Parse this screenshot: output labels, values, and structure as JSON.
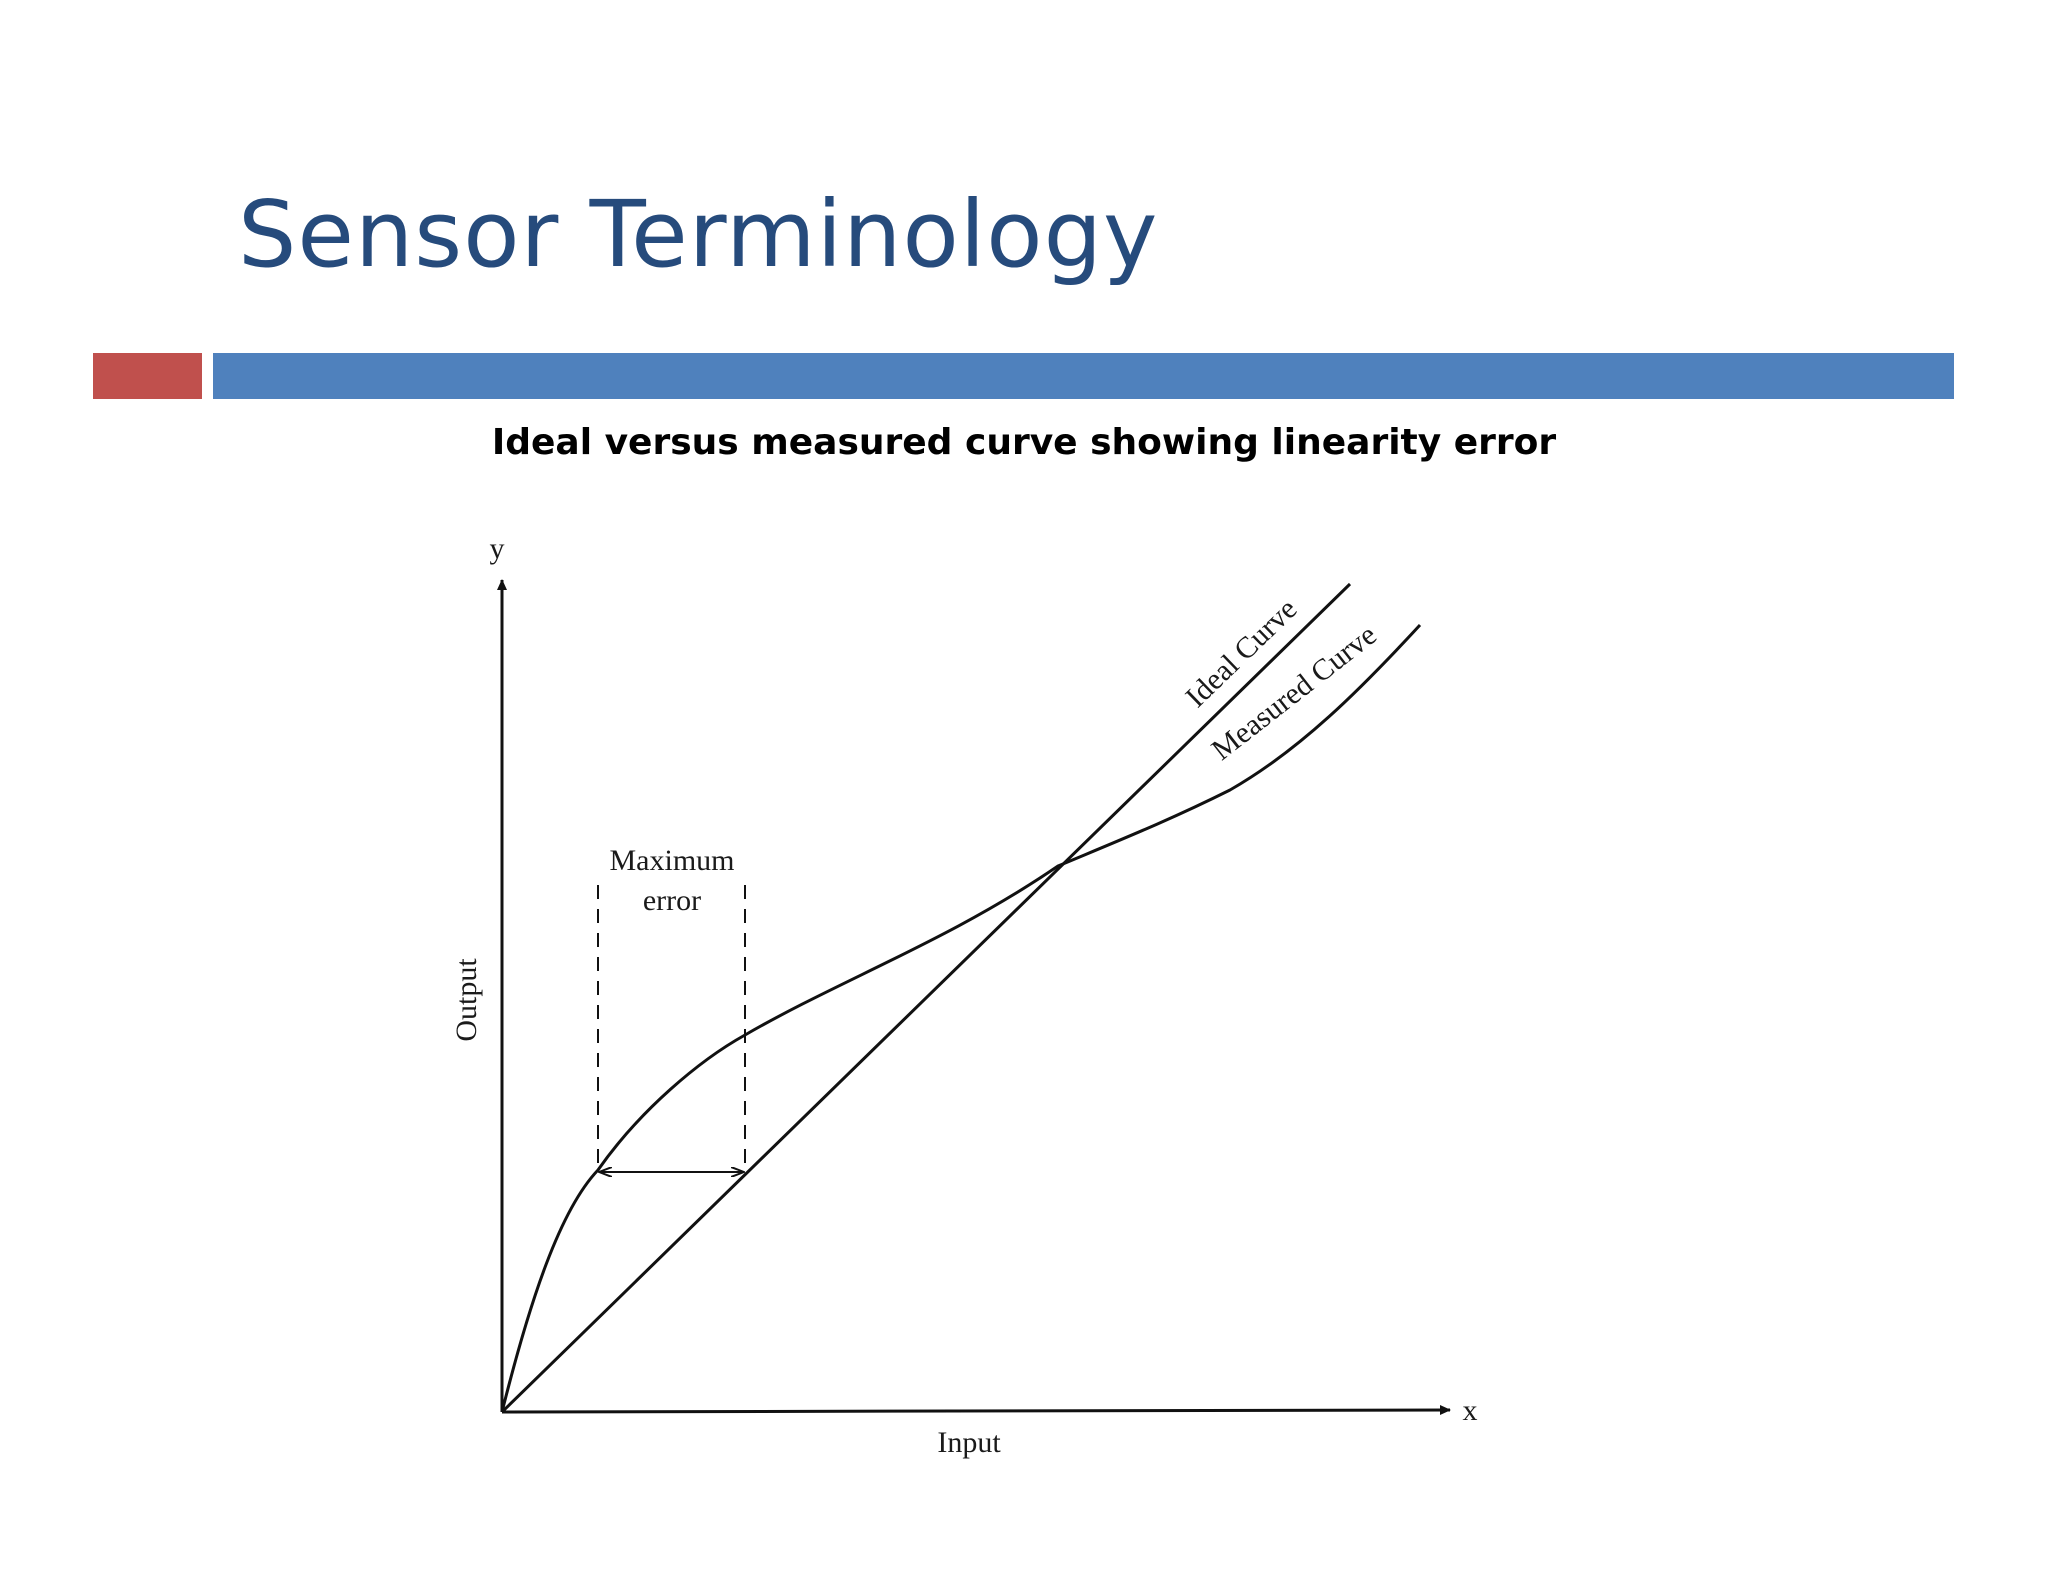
{
  "slide": {
    "title": "Sensor Terminology",
    "subtitle": "Ideal versus measured curve showing linearity error"
  },
  "colors": {
    "title": "#264b7c",
    "accent_red": "#c0504d",
    "accent_blue": "#4f81bd",
    "line": "#111111"
  },
  "diagram": {
    "y_axis_label": "y",
    "x_axis_label": "x",
    "output_label": "Output",
    "input_label": "Input",
    "ideal_curve_label": "Ideal Curve",
    "measured_curve_label": "Measured Curve",
    "max_error_line1": "Maximum",
    "max_error_line2": "error"
  }
}
